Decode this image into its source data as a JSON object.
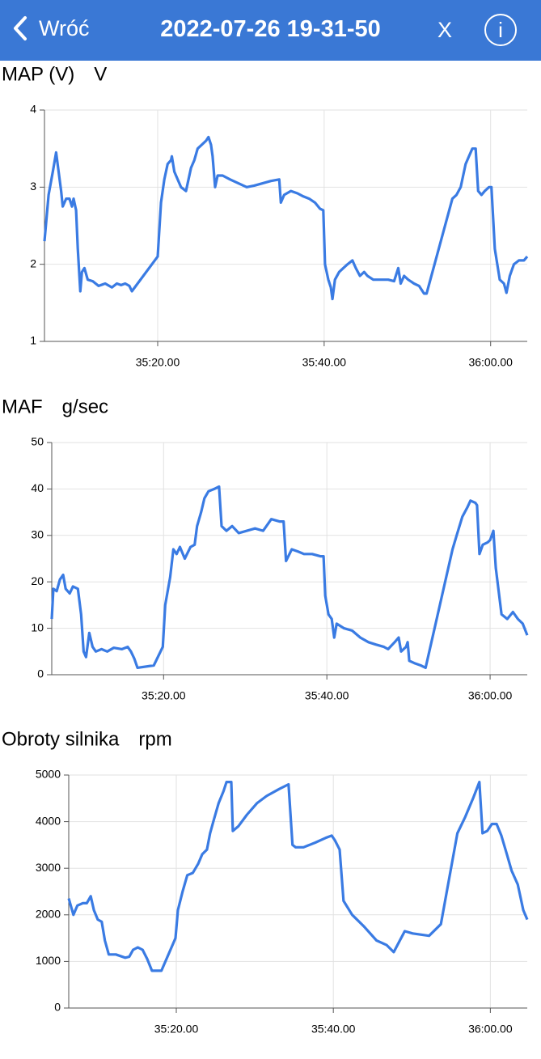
{
  "header": {
    "back": "Wróć",
    "title": "2022-07-26 19-31-50",
    "close": "X",
    "info": "i"
  },
  "chart_data": [
    {
      "type": "line",
      "title": "MAP (V)",
      "ylabel": "V",
      "color": "#3a7be3",
      "grid": true,
      "xlim": [
        2106.4,
        2164.4
      ],
      "ylim": [
        1,
        4
      ],
      "yticks": [
        1,
        2,
        3,
        4
      ],
      "xticks": [
        {
          "value": 2120,
          "label": "35:20.00"
        },
        {
          "value": 2140,
          "label": "35:40.00"
        },
        {
          "value": 2160,
          "label": "36:00.00"
        }
      ],
      "x": [
        2106.4,
        2106.9,
        2107.4,
        2107.8,
        2108.1,
        2108.4,
        2108.6,
        2109.0,
        2109.4,
        2109.7,
        2109.9,
        2110.2,
        2110.4,
        2110.7,
        2110.9,
        2111.2,
        2111.6,
        2112.2,
        2112.9,
        2113.7,
        2114.5,
        2115.1,
        2115.6,
        2116.1,
        2116.6,
        2116.9,
        2120.0,
        2120.4,
        2120.8,
        2121.2,
        2121.6,
        2121.7,
        2122.0,
        2122.4,
        2122.8,
        2123.4,
        2124.0,
        2124.4,
        2124.8,
        2125.3,
        2125.8,
        2126.1,
        2126.4,
        2126.6,
        2126.9,
        2127.2,
        2127.8,
        2128.7,
        2129.7,
        2130.7,
        2131.6,
        2132.6,
        2133.6,
        2134.6,
        2134.8,
        2135.2,
        2136.0,
        2136.8,
        2137.5,
        2138.2,
        2138.9,
        2139.5,
        2139.9,
        2140.1,
        2140.5,
        2140.8,
        2141.0,
        2141.3,
        2141.8,
        2142.3,
        2142.8,
        2143.4,
        2143.8,
        2144.3,
        2144.8,
        2145.2,
        2145.9,
        2146.7,
        2147.7,
        2148.4,
        2148.9,
        2149.2,
        2149.6,
        2150.1,
        2150.8,
        2151.4,
        2152.0,
        2152.3,
        2155.4,
        2155.9,
        2156.4,
        2157.0,
        2157.4,
        2157.8,
        2158.2,
        2158.5,
        2158.9,
        2159.3,
        2159.8,
        2160.1,
        2160.5,
        2161.1,
        2161.6,
        2161.9,
        2162.3,
        2162.8,
        2163.4,
        2164.0,
        2164.4
      ],
      "values": [
        2.3,
        2.9,
        3.2,
        3.45,
        3.2,
        2.95,
        2.75,
        2.85,
        2.85,
        2.75,
        2.85,
        2.7,
        2.2,
        1.65,
        1.9,
        1.95,
        1.8,
        1.78,
        1.72,
        1.75,
        1.7,
        1.75,
        1.73,
        1.75,
        1.72,
        1.65,
        2.1,
        2.8,
        3.1,
        3.3,
        3.35,
        3.4,
        3.2,
        3.1,
        3.0,
        2.95,
        3.25,
        3.35,
        3.5,
        3.55,
        3.6,
        3.65,
        3.55,
        3.4,
        3.0,
        3.15,
        3.15,
        3.1,
        3.05,
        3.0,
        3.02,
        3.05,
        3.08,
        3.1,
        2.8,
        2.9,
        2.95,
        2.92,
        2.88,
        2.85,
        2.8,
        2.72,
        2.7,
        2.0,
        1.8,
        1.7,
        1.55,
        1.8,
        1.9,
        1.95,
        2.0,
        2.05,
        1.95,
        1.85,
        1.9,
        1.85,
        1.8,
        1.8,
        1.8,
        1.78,
        1.95,
        1.75,
        1.85,
        1.8,
        1.75,
        1.72,
        1.62,
        1.62,
        2.85,
        2.9,
        3.0,
        3.3,
        3.4,
        3.5,
        3.5,
        2.95,
        2.9,
        2.95,
        3.0,
        3.0,
        2.2,
        1.8,
        1.75,
        1.63,
        1.85,
        2.0,
        2.05,
        2.05,
        2.1
      ]
    },
    {
      "type": "line",
      "title": "MAF",
      "ylabel": "g/sec",
      "color": "#3a7be3",
      "grid": true,
      "xlim": [
        2106.3,
        2164.55
      ],
      "ylim": [
        0,
        50
      ],
      "yticks": [
        0,
        10,
        20,
        30,
        40,
        50
      ],
      "xticks": [
        {
          "value": 2120,
          "label": "35:20.00"
        },
        {
          "value": 2140,
          "label": "35:40.00"
        },
        {
          "value": 2160,
          "label": "36:00.00"
        }
      ],
      "x": [
        2106.3,
        2106.5,
        2106.9,
        2107.3,
        2107.7,
        2108.0,
        2108.5,
        2108.9,
        2109.5,
        2109.9,
        2110.2,
        2110.5,
        2110.9,
        2111.3,
        2111.7,
        2112.4,
        2113.1,
        2113.9,
        2114.9,
        2115.6,
        2116.0,
        2116.4,
        2116.8,
        2118.8,
        2119.9,
        2120.2,
        2120.8,
        2121.2,
        2121.6,
        2122.0,
        2122.6,
        2123.3,
        2123.8,
        2124.1,
        2124.6,
        2125.0,
        2125.5,
        2126.2,
        2126.8,
        2127.1,
        2127.7,
        2128.4,
        2129.2,
        2130.2,
        2131.2,
        2132.2,
        2133.2,
        2134.2,
        2134.7,
        2135.0,
        2135.7,
        2136.5,
        2137.2,
        2138.2,
        2139.2,
        2139.6,
        2139.8,
        2140.2,
        2140.6,
        2140.9,
        2141.2,
        2142.1,
        2143.1,
        2144.1,
        2145.1,
        2146.0,
        2147.0,
        2147.5,
        2148.3,
        2148.8,
        2149.1,
        2149.7,
        2149.9,
        2150.1,
        2150.7,
        2151.5,
        2152.1,
        2155.4,
        2155.9,
        2156.6,
        2157.2,
        2157.6,
        2158.2,
        2158.4,
        2158.7,
        2159.1,
        2159.7,
        2160.0,
        2160.4,
        2160.7,
        2161.4,
        2162.1,
        2162.8,
        2163.4,
        2164.0,
        2164.55
      ],
      "values": [
        12,
        18.5,
        18,
        20.5,
        21.5,
        18.5,
        17.5,
        19,
        18.5,
        13,
        5,
        3.8,
        9,
        6,
        5,
        5.5,
        5,
        5.8,
        5.5,
        6,
        5,
        3.5,
        1.5,
        2,
        6,
        15,
        21,
        27,
        26,
        27.5,
        25,
        27.5,
        28,
        32,
        35,
        38,
        39.5,
        40,
        40.5,
        32,
        31,
        32,
        30.5,
        31,
        31.5,
        31,
        33.5,
        33,
        33,
        24.5,
        27,
        26.5,
        26,
        26,
        25.5,
        25.5,
        17,
        13,
        12,
        8,
        11,
        10,
        9.5,
        8,
        7,
        6.5,
        6,
        5.5,
        7,
        8,
        5,
        6,
        7,
        3,
        2.5,
        2,
        1.5,
        27,
        30,
        34,
        36,
        37.5,
        37,
        36.5,
        26,
        28,
        28.5,
        29,
        31,
        23,
        13,
        12,
        13.5,
        12,
        11,
        8.5
      ]
    },
    {
      "type": "line",
      "title": "Obroty silnika",
      "ylabel": "rpm",
      "color": "#3a7be3",
      "grid": true,
      "xlim": [
        2106.3,
        2164.7
      ],
      "ylim": [
        0,
        5000
      ],
      "yticks": [
        0,
        1000,
        2000,
        3000,
        4000,
        5000
      ],
      "xticks": [
        {
          "value": 2120,
          "label": "35:20.00"
        },
        {
          "value": 2140,
          "label": "35:40.00"
        },
        {
          "value": 2160,
          "label": "36:00.00"
        }
      ],
      "x": [
        2106.3,
        2106.9,
        2107.4,
        2108.1,
        2108.6,
        2109.1,
        2109.5,
        2110.0,
        2110.5,
        2110.9,
        2111.4,
        2112.3,
        2113.5,
        2114.0,
        2114.5,
        2115.1,
        2115.7,
        2116.3,
        2116.9,
        2118.1,
        2119.9,
        2120.2,
        2120.8,
        2121.4,
        2122.1,
        2122.8,
        2123.3,
        2123.9,
        2124.3,
        2124.8,
        2125.4,
        2126.0,
        2126.4,
        2127.0,
        2127.2,
        2127.9,
        2129.0,
        2130.3,
        2131.5,
        2133.1,
        2134.3,
        2134.8,
        2135.2,
        2136.2,
        2137.7,
        2139.0,
        2139.8,
        2140.2,
        2140.8,
        2141.3,
        2142.4,
        2143.9,
        2145.5,
        2146.8,
        2147.7,
        2149.1,
        2150.1,
        2152.2,
        2153.7,
        2155.8,
        2156.8,
        2157.8,
        2158.6,
        2159.0,
        2159.6,
        2160.2,
        2160.8,
        2161.4,
        2162.1,
        2162.7,
        2163.5,
        2164.2,
        2164.7
      ],
      "values": [
        2350,
        2000,
        2200,
        2250,
        2250,
        2400,
        2100,
        1900,
        1850,
        1450,
        1150,
        1150,
        1080,
        1100,
        1250,
        1300,
        1250,
        1050,
        800,
        800,
        1500,
        2100,
        2500,
        2850,
        2900,
        3100,
        3300,
        3400,
        3750,
        4050,
        4400,
        4650,
        4850,
        4850,
        3800,
        3900,
        4150,
        4400,
        4550,
        4700,
        4800,
        3500,
        3450,
        3450,
        3550,
        3650,
        3700,
        3600,
        3400,
        2300,
        2000,
        1750,
        1450,
        1350,
        1200,
        1650,
        1600,
        1550,
        1800,
        3750,
        4100,
        4500,
        4850,
        3750,
        3800,
        3950,
        3950,
        3700,
        3300,
        2950,
        2650,
        2100,
        1900
      ]
    }
  ]
}
